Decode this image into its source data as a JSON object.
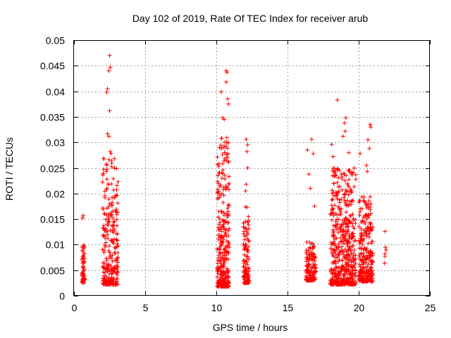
{
  "chart_data": {
    "type": "scatter",
    "title": "Day 102 of 2019, Rate Of TEC Index for receiver arub",
    "xlabel": "GPS time / hours",
    "ylabel": "ROTI / TECUs",
    "xlim": [
      0,
      25
    ],
    "ylim": [
      0,
      0.05
    ],
    "x_ticks": [
      0,
      5,
      10,
      15,
      20,
      25
    ],
    "x_tick_labels": [
      "0",
      "5",
      "10",
      "15",
      "20",
      "25"
    ],
    "y_ticks": [
      0,
      0.005,
      0.01,
      0.015,
      0.02,
      0.025,
      0.03,
      0.035,
      0.04,
      0.045,
      0.05
    ],
    "y_tick_labels": [
      "0",
      "0.005",
      "0.01",
      "0.015",
      "0.02",
      "0.025",
      "0.03",
      "0.035",
      "0.04",
      "0.045",
      "0.05"
    ],
    "grid": true,
    "marker": "+",
    "color": "#ff0000",
    "clusters": [
      {
        "x_range": [
          0.55,
          0.75
        ],
        "y_range": [
          0.0025,
          0.0105
        ],
        "count": 55,
        "outliers": [
          [
            0.6,
            0.0152
          ],
          [
            0.65,
            0.0157
          ]
        ]
      },
      {
        "x_range": [
          2.0,
          3.1
        ],
        "y_range": [
          0.0022,
          0.027
        ],
        "count": 260,
        "outliers": [
          [
            2.5,
            0.047
          ],
          [
            2.55,
            0.0447
          ],
          [
            2.45,
            0.044
          ],
          [
            2.35,
            0.0405
          ],
          [
            2.3,
            0.0398
          ],
          [
            2.5,
            0.0362
          ],
          [
            2.35,
            0.0317
          ],
          [
            2.45,
            0.0312
          ],
          [
            2.55,
            0.0282
          ],
          [
            2.6,
            0.0278
          ],
          [
            2.9,
            0.0195
          ],
          [
            2.95,
            0.0165
          ]
        ]
      },
      {
        "x_range": [
          10.05,
          10.9
        ],
        "y_range": [
          0.0018,
          0.031
        ],
        "count": 300,
        "outliers": [
          [
            10.7,
            0.044
          ],
          [
            10.75,
            0.0437
          ],
          [
            10.7,
            0.0418
          ],
          [
            10.35,
            0.0399
          ],
          [
            10.8,
            0.0385
          ],
          [
            10.85,
            0.0375
          ],
          [
            10.45,
            0.0348
          ],
          [
            10.55,
            0.0345
          ]
        ]
      },
      {
        "x_range": [
          11.9,
          12.3
        ],
        "y_range": [
          0.0025,
          0.0175
        ],
        "count": 110,
        "outliers": [
          [
            12.1,
            0.0306
          ],
          [
            12.2,
            0.0295
          ],
          [
            12.15,
            0.0282
          ],
          [
            12.2,
            0.025
          ],
          [
            12.1,
            0.0218
          ],
          [
            12.05,
            0.0205
          ]
        ]
      },
      {
        "x_range": [
          16.3,
          17.0
        ],
        "y_range": [
          0.003,
          0.0105
        ],
        "count": 150,
        "outliers": [
          [
            16.4,
            0.0285
          ],
          [
            16.7,
            0.0306
          ],
          [
            16.8,
            0.0278
          ],
          [
            16.5,
            0.0238
          ],
          [
            16.9,
            0.0175
          ],
          [
            16.6,
            0.021
          ]
        ]
      },
      {
        "x_range": [
          18.0,
          19.8
        ],
        "y_range": [
          0.0022,
          0.025
        ],
        "count": 520,
        "outliers": [
          [
            18.5,
            0.0383
          ],
          [
            19.1,
            0.0348
          ],
          [
            19.0,
            0.0338
          ],
          [
            19.05,
            0.0322
          ],
          [
            18.9,
            0.0312
          ],
          [
            18.1,
            0.0296
          ],
          [
            19.3,
            0.028
          ],
          [
            18.2,
            0.0272
          ]
        ]
      },
      {
        "x_range": [
          20.0,
          21.0
        ],
        "y_range": [
          0.0028,
          0.0195
        ],
        "count": 260,
        "outliers": [
          [
            20.8,
            0.0335
          ],
          [
            20.85,
            0.033
          ],
          [
            20.65,
            0.0305
          ],
          [
            20.75,
            0.0288
          ],
          [
            20.1,
            0.0278
          ],
          [
            20.55,
            0.0255
          ],
          [
            20.6,
            0.0243
          ]
        ]
      },
      {
        "x_range": [
          21.8,
          21.95
        ],
        "y_range": [
          0.0055,
          0.0095
        ],
        "count": 5,
        "outliers": [
          [
            21.85,
            0.0126
          ]
        ]
      }
    ]
  }
}
